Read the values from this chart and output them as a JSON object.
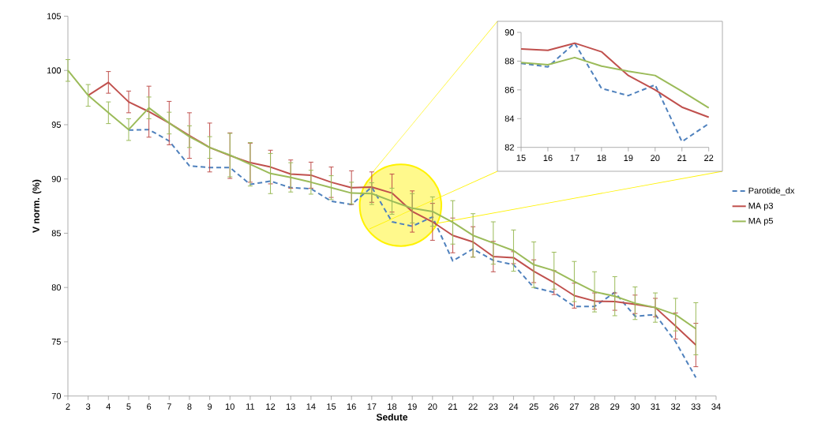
{
  "chart_data": [
    {
      "type": "line",
      "xlabel": "Sedute",
      "ylabel": "V norm. (%)",
      "x": [
        2,
        3,
        4,
        5,
        6,
        7,
        8,
        9,
        10,
        11,
        12,
        13,
        14,
        15,
        16,
        17,
        18,
        19,
        20,
        21,
        22,
        23,
        24,
        25,
        26,
        27,
        28,
        29,
        30,
        31,
        32,
        33
      ],
      "series": [
        {
          "name": "Parotide_dx",
          "color": "#4f81bd",
          "line_style": "dashed",
          "values": [
            null,
            null,
            null,
            94.5,
            94.55,
            93.5,
            91.2,
            91.05,
            91.05,
            89.5,
            89.8,
            89.2,
            89.1,
            87.95,
            87.65,
            89.25,
            86.05,
            85.65,
            86.5,
            82.45,
            83.55,
            82.5,
            82.1,
            80.0,
            79.55,
            78.25,
            78.25,
            79.55,
            77.35,
            77.5,
            75.0,
            71.7
          ]
        },
        {
          "name": "MA p3",
          "color": "#c0504d",
          "values": [
            null,
            97.7,
            98.9,
            97.1,
            96.2,
            95.15,
            94.0,
            92.9,
            92.15,
            91.5,
            91.1,
            90.45,
            90.35,
            89.7,
            89.2,
            89.25,
            88.7,
            87.0,
            86.05,
            84.8,
            84.2,
            82.85,
            82.75,
            81.5,
            80.45,
            79.25,
            78.75,
            78.7,
            78.45,
            78.15,
            76.45,
            74.7
          ],
          "errors": [
            null,
            null,
            1,
            1,
            2.35,
            2,
            2.1,
            2.25,
            2.1,
            1.8,
            1.55,
            1.3,
            1.2,
            1.4,
            1.55,
            1.4,
            1.75,
            1.9,
            1.7,
            1.6,
            1.4,
            1.4,
            0.55,
            1.05,
            1.1,
            1.15,
            0.75,
            0.8,
            0.85,
            0.85,
            1.2,
            2.0
          ]
        },
        {
          "name": "MA p5",
          "color": "#9bbb59",
          "values": [
            100,
            97.7,
            96.1,
            94.55,
            96.55,
            95.15,
            93.9,
            92.9,
            92.2,
            91.35,
            90.5,
            90.15,
            89.7,
            89.2,
            88.7,
            88.65,
            87.95,
            87.3,
            87.0,
            86.0,
            84.8,
            84.1,
            83.4,
            82.1,
            81.55,
            80.55,
            79.6,
            79.2,
            78.55,
            78.15,
            77.5,
            76.2
          ],
          "errors": [
            1,
            1,
            1,
            1,
            1,
            1,
            1,
            1,
            2,
            2,
            1.85,
            1.35,
            1.1,
            1.1,
            1,
            1,
            1.2,
            1.35,
            1.35,
            2,
            2,
            1.95,
            1.9,
            2.1,
            1.7,
            1.85,
            1.85,
            1.8,
            1.5,
            1.35,
            1.5,
            2.4
          ]
        }
      ],
      "xlim": [
        2,
        34
      ],
      "xticks": [
        2,
        3,
        4,
        5,
        6,
        7,
        8,
        9,
        10,
        11,
        12,
        13,
        14,
        15,
        16,
        17,
        18,
        19,
        20,
        21,
        22,
        23,
        24,
        25,
        26,
        27,
        28,
        29,
        30,
        31,
        32,
        33,
        34
      ],
      "ylim": [
        70,
        105
      ],
      "yticks": [
        70,
        75,
        80,
        85,
        90,
        95,
        100,
        105
      ],
      "legend": "right"
    },
    {
      "type": "line",
      "x": [
        15,
        16,
        17,
        18,
        19,
        20,
        21,
        22
      ],
      "series": [
        {
          "color": "#4f81bd",
          "line_style": "dashed",
          "values": [
            87.85,
            87.6,
            89.25,
            86.1,
            85.6,
            86.35,
            82.4,
            83.65
          ]
        },
        {
          "color": "#c0504d",
          "values": [
            88.85,
            88.75,
            89.25,
            88.65,
            87.0,
            86.0,
            84.8,
            84.1
          ]
        },
        {
          "color": "#9bbb59",
          "values": [
            87.9,
            87.75,
            88.25,
            87.65,
            87.3,
            87.0,
            85.9,
            84.75
          ]
        }
      ],
      "xlim": [
        15,
        22
      ],
      "xticks": [
        15,
        16,
        17,
        18,
        19,
        20,
        21,
        22
      ],
      "ylim": [
        82,
        90
      ],
      "yticks": [
        82,
        84,
        86,
        88,
        90
      ]
    }
  ]
}
